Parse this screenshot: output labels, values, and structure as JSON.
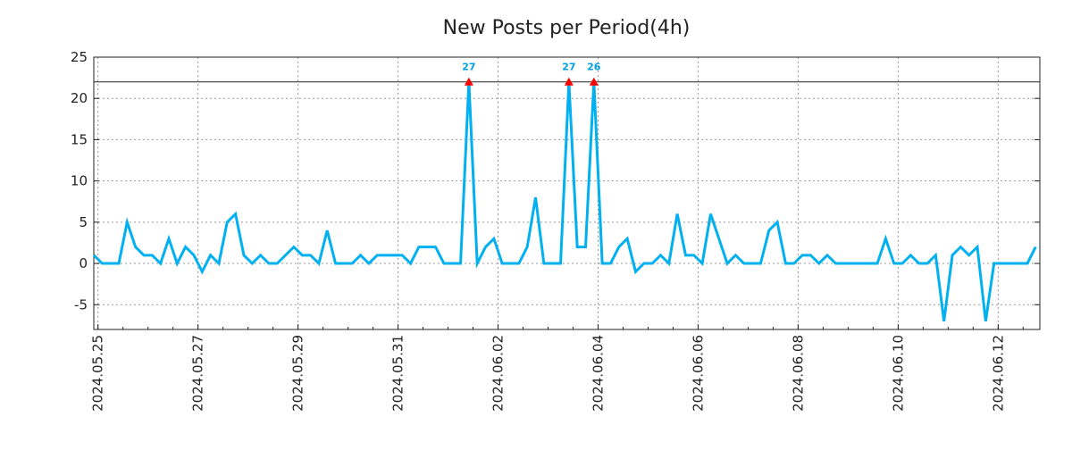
{
  "chart_data": {
    "type": "line",
    "title": "New Posts per Period(4h)",
    "xlabel": "",
    "ylabel": "",
    "ylim": [
      -8,
      25
    ],
    "y_ticks": [
      -5,
      0,
      5,
      10,
      15,
      20,
      25
    ],
    "clip_value": 22,
    "x_tick_labels": [
      "2024.05.25",
      "2024.05.27",
      "2024.05.29",
      "2024.05.31",
      "2024.06.02",
      "2024.06.04",
      "2024.06.06",
      "2024.06.08",
      "2024.06.10",
      "2024.06.12"
    ],
    "x_tick_positions": [
      0.5,
      12.5,
      24.5,
      36.5,
      48.5,
      60.5,
      72.5,
      84.5,
      96.5,
      108.5
    ],
    "x_range": [
      0,
      113.5
    ],
    "grid": true,
    "series": [
      {
        "name": "New Posts",
        "color": "#00b0f0",
        "values": [
          1,
          0,
          0,
          0,
          5,
          2,
          1,
          1,
          0,
          3,
          0,
          2,
          1,
          -1,
          1,
          0,
          5,
          6,
          1,
          0,
          1,
          0,
          0,
          1,
          2,
          1,
          1,
          0,
          4,
          0,
          0,
          0,
          1,
          0,
          1,
          1,
          1,
          1,
          0,
          2,
          2,
          2,
          0,
          0,
          0,
          27,
          0,
          2,
          3,
          0,
          0,
          0,
          2,
          8,
          0,
          0,
          0,
          27,
          2,
          2,
          26,
          0,
          0,
          2,
          3,
          -1,
          0,
          0,
          1,
          0,
          6,
          1,
          1,
          0,
          6,
          3,
          0,
          1,
          0,
          0,
          0,
          4,
          5,
          0,
          0,
          1,
          1,
          0,
          1,
          0,
          0,
          0,
          0,
          0,
          0,
          3,
          0,
          0,
          1,
          0,
          0,
          1,
          -7,
          1,
          2,
          1,
          2,
          -7,
          0,
          0,
          0,
          0,
          0,
          2
        ]
      }
    ],
    "clipped_marker_color": "#ff0000",
    "label_color": "#00a0e0"
  }
}
